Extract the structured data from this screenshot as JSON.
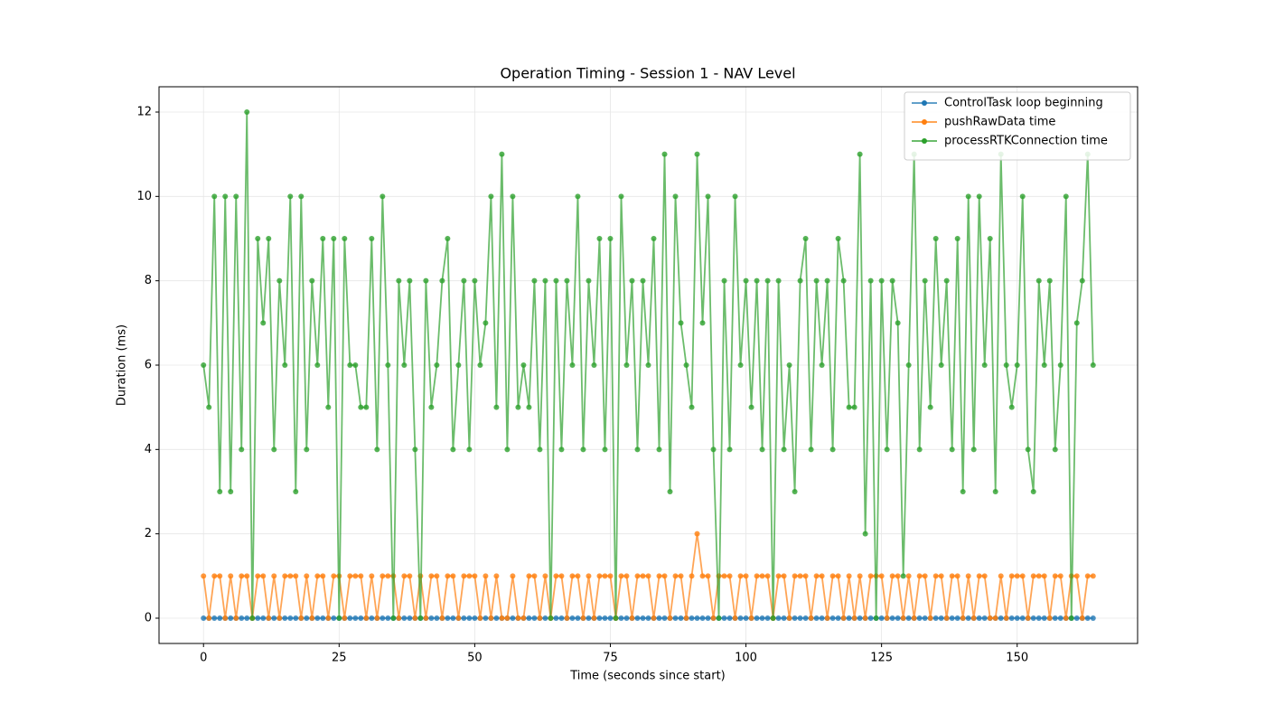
{
  "chart_data": {
    "type": "line",
    "title": "Operation Timing - Session 1 - NAV Level",
    "x_label": "Time (seconds since start)",
    "y_label": "Duration (ms)",
    "xlim": [
      -8.2,
      172.2
    ],
    "ylim": [
      -0.6,
      12.6
    ],
    "xticks": [
      0,
      25,
      50,
      75,
      100,
      125,
      150
    ],
    "yticks": [
      0,
      2,
      4,
      6,
      8,
      10,
      12
    ],
    "grid": true,
    "legend": "upper right",
    "x": [
      0,
      1,
      2,
      3,
      4,
      5,
      6,
      7,
      8,
      9,
      10,
      11,
      12,
      13,
      14,
      15,
      16,
      17,
      18,
      19,
      20,
      21,
      22,
      23,
      24,
      25,
      26,
      27,
      28,
      29,
      30,
      31,
      32,
      33,
      34,
      35,
      36,
      37,
      38,
      39,
      40,
      41,
      42,
      43,
      44,
      45,
      46,
      47,
      48,
      49,
      50,
      51,
      52,
      53,
      54,
      55,
      56,
      57,
      58,
      59,
      60,
      61,
      62,
      63,
      64,
      65,
      66,
      67,
      68,
      69,
      70,
      71,
      72,
      73,
      74,
      75,
      76,
      77,
      78,
      79,
      80,
      81,
      82,
      83,
      84,
      85,
      86,
      87,
      88,
      89,
      90,
      91,
      92,
      93,
      94,
      95,
      96,
      97,
      98,
      99,
      100,
      101,
      102,
      103,
      104,
      105,
      106,
      107,
      108,
      109,
      110,
      111,
      112,
      113,
      114,
      115,
      116,
      117,
      118,
      119,
      120,
      121,
      122,
      123,
      124,
      125,
      126,
      127,
      128,
      129,
      130,
      131,
      132,
      133,
      134,
      135,
      136,
      137,
      138,
      139,
      140,
      141,
      142,
      143,
      144,
      145,
      146,
      147,
      148,
      149,
      150,
      151,
      152,
      153,
      154,
      155,
      156,
      157,
      158,
      159,
      160,
      161,
      162,
      163,
      164
    ],
    "series": [
      {
        "name": "ControlTask loop beginning",
        "color": "#1f77b4",
        "values": [
          0,
          0,
          0,
          0,
          0,
          0,
          0,
          0,
          0,
          0,
          0,
          0,
          0,
          0,
          0,
          0,
          0,
          0,
          0,
          0,
          0,
          0,
          0,
          0,
          0,
          0,
          0,
          0,
          0,
          0,
          0,
          0,
          0,
          0,
          0,
          0,
          0,
          0,
          0,
          0,
          0,
          0,
          0,
          0,
          0,
          0,
          0,
          0,
          0,
          0,
          0,
          0,
          0,
          0,
          0,
          0,
          0,
          0,
          0,
          0,
          0,
          0,
          0,
          0,
          0,
          0,
          0,
          0,
          0,
          0,
          0,
          0,
          0,
          0,
          0,
          0,
          0,
          0,
          0,
          0,
          0,
          0,
          0,
          0,
          0,
          0,
          0,
          0,
          0,
          0,
          0,
          0,
          0,
          0,
          0,
          0,
          0,
          0,
          0,
          0,
          0,
          0,
          0,
          0,
          0,
          0,
          0,
          0,
          0,
          0,
          0,
          0,
          0,
          0,
          0,
          0,
          0,
          0,
          0,
          0,
          0,
          0,
          0,
          0,
          0,
          0,
          0,
          0,
          0,
          0,
          0,
          0,
          0,
          0,
          0,
          0,
          0,
          0,
          0,
          0,
          0,
          0,
          0,
          0,
          0,
          0,
          0,
          0,
          0,
          0,
          0,
          0,
          0,
          0,
          0,
          0,
          0,
          0,
          0,
          0,
          0,
          0,
          0,
          0,
          0
        ]
      },
      {
        "name": "pushRawData time",
        "color": "#ff7f0e",
        "values": [
          1,
          0,
          1,
          1,
          0,
          1,
          0,
          1,
          1,
          0,
          1,
          1,
          0,
          1,
          0,
          1,
          1,
          1,
          0,
          1,
          0,
          1,
          1,
          0,
          1,
          1,
          0,
          1,
          1,
          1,
          0,
          1,
          0,
          1,
          1,
          1,
          0,
          1,
          1,
          0,
          1,
          0,
          1,
          1,
          0,
          1,
          1,
          0,
          1,
          1,
          1,
          0,
          1,
          0,
          1,
          0,
          0,
          1,
          0,
          0,
          1,
          1,
          0,
          1,
          0,
          1,
          1,
          0,
          1,
          1,
          0,
          1,
          0,
          1,
          1,
          1,
          0,
          1,
          1,
          0,
          1,
          1,
          1,
          0,
          1,
          1,
          0,
          1,
          1,
          0,
          1,
          2,
          1,
          1,
          0,
          1,
          1,
          1,
          0,
          1,
          1,
          0,
          1,
          1,
          1,
          0,
          1,
          1,
          0,
          1,
          1,
          1,
          0,
          1,
          1,
          0,
          1,
          1,
          0,
          1,
          0,
          1,
          0,
          1,
          1,
          1,
          0,
          1,
          1,
          0,
          1,
          0,
          1,
          1,
          0,
          1,
          1,
          0,
          1,
          1,
          0,
          1,
          0,
          1,
          1,
          0,
          0,
          1,
          0,
          1,
          1,
          1,
          0,
          1,
          1,
          1,
          0,
          1,
          1,
          0,
          1,
          1,
          0,
          1,
          1
        ]
      },
      {
        "name": "processRTKConnection time",
        "color": "#2ca02c",
        "values": [
          6,
          5,
          10,
          3,
          10,
          3,
          10,
          4,
          12,
          0,
          9,
          7,
          9,
          4,
          8,
          6,
          10,
          3,
          10,
          4,
          8,
          6,
          9,
          5,
          9,
          0,
          9,
          6,
          6,
          5,
          5,
          9,
          4,
          10,
          6,
          0,
          8,
          6,
          8,
          4,
          0,
          8,
          5,
          6,
          8,
          9,
          4,
          6,
          8,
          4,
          8,
          6,
          7,
          10,
          5,
          11,
          4,
          10,
          5,
          6,
          5,
          8,
          4,
          8,
          0,
          8,
          4,
          8,
          6,
          10,
          4,
          8,
          6,
          9,
          4,
          9,
          0,
          10,
          6,
          8,
          4,
          8,
          6,
          9,
          4,
          11,
          3,
          10,
          7,
          6,
          5,
          11,
          7,
          10,
          4,
          0,
          8,
          4,
          10,
          6,
          8,
          5,
          8,
          4,
          8,
          0,
          8,
          4,
          6,
          3,
          8,
          9,
          4,
          8,
          6,
          8,
          4,
          9,
          8,
          5,
          5,
          11,
          2,
          8,
          0,
          8,
          4,
          8,
          7,
          1,
          6,
          11,
          4,
          8,
          5,
          9,
          6,
          8,
          4,
          9,
          3,
          10,
          4,
          10,
          6,
          9,
          3,
          11,
          6,
          5,
          6,
          10,
          4,
          3,
          8,
          6,
          8,
          4,
          6,
          10,
          0,
          7,
          8,
          11,
          6
        ]
      }
    ]
  }
}
